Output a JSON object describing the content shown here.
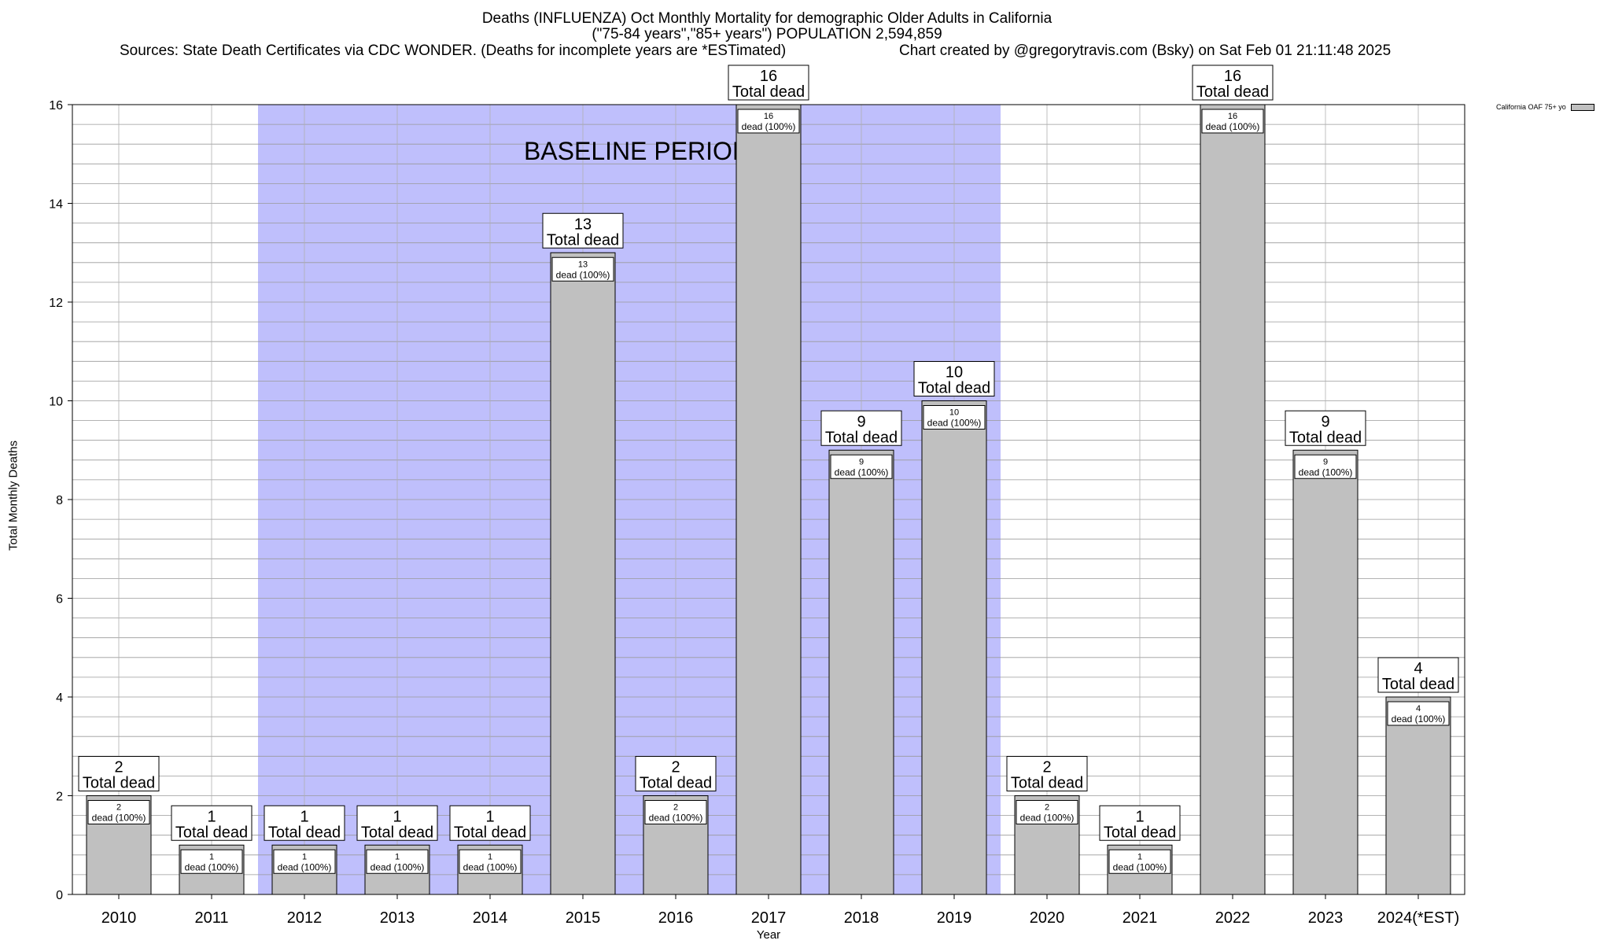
{
  "chart_data": {
    "type": "bar",
    "title": "Deaths (INFLUENZA) Oct Monthly Mortality for demographic Older Adults in California",
    "subtitle": "(\"75-84 years\",\"85+ years\") POPULATION 2,594,859",
    "sources": "Sources: State Death Certificates via CDC WONDER. (Deaths for incomplete years are *ESTimated)",
    "credit": "Chart created by @gregorytravis.com (Bsky) on Sat Feb 01 21:11:48 2025",
    "xlabel": "Year",
    "ylabel": "Total Monthly Deaths",
    "ylim": [
      0,
      16
    ],
    "yticks": [
      0,
      2,
      4,
      6,
      8,
      10,
      12,
      14,
      16
    ],
    "categories": [
      "2010",
      "2011",
      "2012",
      "2013",
      "2014",
      "2015",
      "2016",
      "2017",
      "2018",
      "2019",
      "2020",
      "2021",
      "2022",
      "2023",
      "2024(*EST)"
    ],
    "series": [
      {
        "name": "California OAF 75+ yo",
        "color": "#c0c0c0",
        "values": [
          2,
          1,
          1,
          1,
          1,
          13,
          2,
          16,
          9,
          10,
          2,
          1,
          16,
          9,
          4
        ]
      }
    ],
    "total_label": "Total dead",
    "inner_label": "dead (100%)",
    "baseline": {
      "label": "BASELINE PERIOD",
      "from": "2012",
      "to": "2019",
      "color": "#bfbffc"
    },
    "legend_position": "top-right",
    "grid": true
  }
}
